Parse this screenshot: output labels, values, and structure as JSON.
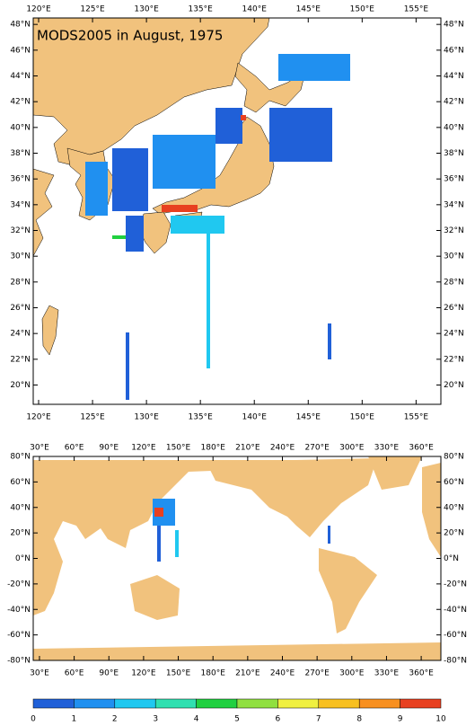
{
  "maps": [
    {
      "title": "MODS2005 in August, 1975",
      "lonlim": [
        119.5,
        157.3
      ],
      "latlim": [
        18.5,
        48.5
      ],
      "lonticks": [
        {
          "value": 120,
          "label": "120°E"
        },
        {
          "value": 125,
          "label": "125°E"
        },
        {
          "value": 130,
          "label": "130°E"
        },
        {
          "value": 135,
          "label": "135°E"
        },
        {
          "value": 140,
          "label": "140°E"
        },
        {
          "value": 145,
          "label": "145°E"
        },
        {
          "value": 150,
          "label": "150°E"
        },
        {
          "value": 155,
          "label": "155°E"
        }
      ],
      "latticks": [
        {
          "value": 20,
          "label": "20°N"
        },
        {
          "value": 22,
          "label": "22°N"
        },
        {
          "value": 24,
          "label": "24°N"
        },
        {
          "value": 26,
          "label": "26°N"
        },
        {
          "value": 28,
          "label": "28°N"
        },
        {
          "value": 30,
          "label": "30°N"
        },
        {
          "value": 32,
          "label": "32°N"
        },
        {
          "value": 34,
          "label": "34°N"
        },
        {
          "value": 36,
          "label": "36°N"
        },
        {
          "value": 38,
          "label": "38°N"
        },
        {
          "value": 40,
          "label": "40°N"
        },
        {
          "value": 42,
          "label": "42°N"
        },
        {
          "value": 44,
          "label": "44°N"
        },
        {
          "value": 46,
          "label": "46°N"
        },
        {
          "value": 48,
          "label": "48°N"
        }
      ]
    },
    {
      "lonlim": [
        24.6,
        377
      ],
      "latlim": [
        -80,
        80
      ],
      "lonticks": [
        {
          "value": 30,
          "label": "30°E"
        },
        {
          "value": 60,
          "label": "60°E"
        },
        {
          "value": 90,
          "label": "90°E"
        },
        {
          "value": 120,
          "label": "120°E"
        },
        {
          "value": 150,
          "label": "150°E"
        },
        {
          "value": 180,
          "label": "180°E"
        },
        {
          "value": 210,
          "label": "210°E"
        },
        {
          "value": 240,
          "label": "240°E"
        },
        {
          "value": 270,
          "label": "270°E"
        },
        {
          "value": 300,
          "label": "300°E"
        },
        {
          "value": 330,
          "label": "330°E"
        },
        {
          "value": 360,
          "label": "360°E"
        }
      ],
      "latticks": [
        {
          "value": -80,
          "label": "-80°N"
        },
        {
          "value": -60,
          "label": "-60°N"
        },
        {
          "value": -40,
          "label": "-40°N"
        },
        {
          "value": -20,
          "label": "-20°N"
        },
        {
          "value": 0,
          "label": "0°N"
        },
        {
          "value": 20,
          "label": "20°N"
        },
        {
          "value": 40,
          "label": "40°N"
        },
        {
          "value": 60,
          "label": "60°N"
        },
        {
          "value": 80,
          "label": "80°N"
        }
      ]
    }
  ],
  "colorbar": {
    "ticks": [
      0,
      1,
      2,
      3,
      4,
      5,
      6,
      7,
      8,
      9,
      10
    ],
    "colors": [
      "#2060d8",
      "#2090f0",
      "#20c8f0",
      "#30e0b0",
      "#20d040",
      "#90e040",
      "#f0f040",
      "#f8c020",
      "#f89020",
      "#e84020"
    ]
  }
}
